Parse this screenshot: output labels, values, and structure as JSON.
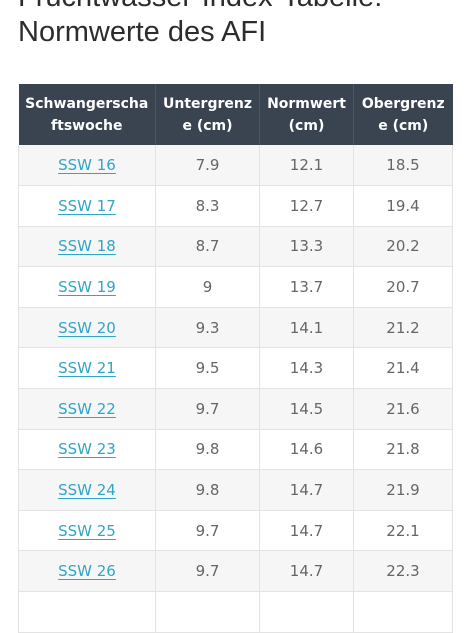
{
  "page": {
    "title_line1": "Fruchtwasser-Index-Tabelle:",
    "title_line2": "Normwerte des AFI"
  },
  "table": {
    "headers": [
      "Schwangerschaftswoche",
      "Untergrenze (cm)",
      "Normwert (cm)",
      "Obergrenze (cm)"
    ],
    "rows": [
      {
        "week": "SSW 16",
        "lower": "7.9",
        "normal": "12.1",
        "upper": "18.5"
      },
      {
        "week": "SSW 17",
        "lower": "8.3",
        "normal": "12.7",
        "upper": "19.4"
      },
      {
        "week": "SSW 18",
        "lower": "8.7",
        "normal": "13.3",
        "upper": "20.2"
      },
      {
        "week": "SSW 19",
        "lower": "9",
        "normal": "13.7",
        "upper": "20.7"
      },
      {
        "week": "SSW 20",
        "lower": "9.3",
        "normal": "14.1",
        "upper": "21.2"
      },
      {
        "week": "SSW 21",
        "lower": "9.5",
        "normal": "14.3",
        "upper": "21.4"
      },
      {
        "week": "SSW 22",
        "lower": "9.7",
        "normal": "14.5",
        "upper": "21.6"
      },
      {
        "week": "SSW 23",
        "lower": "9.8",
        "normal": "14.6",
        "upper": "21.8"
      },
      {
        "week": "SSW 24",
        "lower": "9.8",
        "normal": "14.7",
        "upper": "21.9"
      },
      {
        "week": "SSW 25",
        "lower": "9.7",
        "normal": "14.7",
        "upper": "22.1"
      },
      {
        "week": "SSW 26",
        "lower": "9.7",
        "normal": "14.7",
        "upper": "22.3"
      },
      {
        "week": "",
        "lower": "",
        "normal": "",
        "upper": ""
      }
    ]
  },
  "colors": {
    "header_background": "#3a4450",
    "link": "#2fa6c7",
    "row_stripe": "#f6f6f6"
  }
}
